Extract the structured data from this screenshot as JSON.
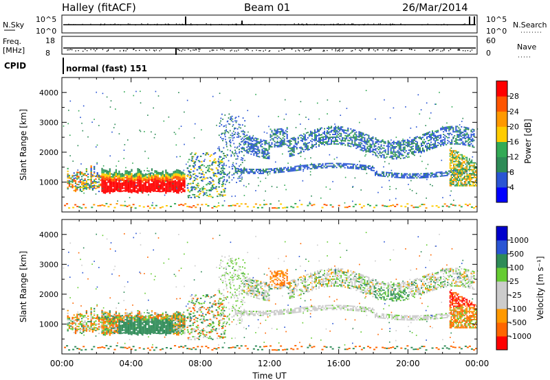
{
  "header": {
    "station": "Halley (fitACF)",
    "beam": "Beam 01",
    "date": "26/Mar/2014"
  },
  "strip_labels": {
    "nsky": "N.Sky",
    "nsky_top": "10^5",
    "nsky_bottom": "10^0",
    "nsearch": "N.Search",
    "nsearch_top": "10^5",
    "nsearch_bottom": "10^0",
    "freq_line1": "Freq.",
    "freq_line2": "[MHz]",
    "freq_top": "18",
    "freq_bottom": "8",
    "nave": "Nave",
    "nave_top": "60",
    "nave_bottom": "0",
    "cpid": "CPID",
    "mode": "normal (fast) 151"
  },
  "colors": {
    "power": [
      "#0000ff",
      "#2a55d4",
      "#2e8b57",
      "#33aa55",
      "#ffcc00",
      "#ff9900",
      "#ff5500",
      "#ff0000"
    ],
    "velocity": [
      "#ff0000",
      "#ff6600",
      "#ff9900",
      "#cccccc",
      "#cccccc",
      "#66cc33",
      "#2e8b57",
      "#2a55d4",
      "#0000cc"
    ]
  },
  "chart_data": [
    {
      "type": "heatmap",
      "name": "power",
      "ylabel": "Slant Range [km]",
      "xlabel": "",
      "xlim": [
        "00:00",
        "24:00"
      ],
      "ylim": [
        0,
        4500
      ],
      "yticks": [
        "1000",
        "2000",
        "3000",
        "4000"
      ],
      "colorbar_label": "Power [dB]",
      "colorbar_ticks": [
        "4",
        "8",
        "12",
        "16",
        "20",
        "24",
        "28"
      ],
      "colorbar_range": [
        0,
        32
      ]
    },
    {
      "type": "heatmap",
      "name": "velocity",
      "ylabel": "Slant Range [km]",
      "xlabel": "Time UT",
      "xlim": [
        "00:00",
        "24:00"
      ],
      "ylim": [
        0,
        4500
      ],
      "yticks": [
        "1000",
        "2000",
        "3000",
        "4000"
      ],
      "xticks": [
        "00:00",
        "04:00",
        "08:00",
        "12:00",
        "16:00",
        "20:00",
        "00:00"
      ],
      "colorbar_label": "Velocity [m s⁻¹]",
      "colorbar_ticks": [
        "1000",
        "500",
        "100",
        "25",
        "-25",
        "-100",
        "-500",
        "-1000"
      ]
    }
  ]
}
